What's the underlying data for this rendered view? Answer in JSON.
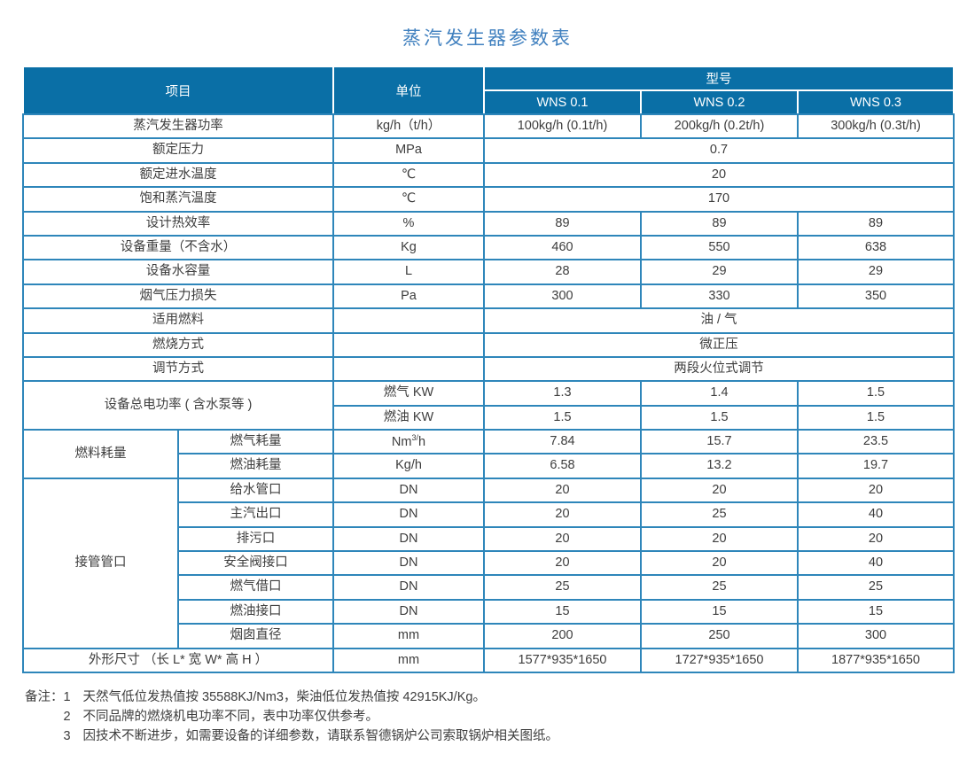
{
  "title": "蒸汽发生器参数表",
  "colors": {
    "header_bg": "#0a6fa6",
    "table_border": "#2e86ba",
    "title_text": "#4080bf",
    "body_text": "#3d3d3d"
  },
  "header": {
    "item": "项目",
    "unit": "单位",
    "model": "型号",
    "models": [
      "WNS 0.1",
      "WNS 0.2",
      "WNS 0.3"
    ]
  },
  "rows": [
    {
      "item": "蒸汽发生器功率",
      "unit": "kg/h（t/h）",
      "values": [
        "100kg/h  (0.1t/h)",
        "200kg/h  (0.2t/h)",
        "300kg/h  (0.3t/h)"
      ]
    },
    {
      "item": "额定压力",
      "unit": "MPa",
      "merged": "0.7"
    },
    {
      "item": "额定进水温度",
      "unit": "℃",
      "merged": "20"
    },
    {
      "item": "饱和蒸汽温度",
      "unit": "℃",
      "merged": "170"
    },
    {
      "item": "设计热效率",
      "unit": "%",
      "values": [
        "89",
        "89",
        "89"
      ]
    },
    {
      "item": "设备重量（不含水）",
      "unit": "Kg",
      "values": [
        "460",
        "550",
        "638"
      ]
    },
    {
      "item": "设备水容量",
      "unit": "L",
      "values": [
        "28",
        "29",
        "29"
      ]
    },
    {
      "item": "烟气压力损失",
      "unit": "Pa",
      "values": [
        "300",
        "330",
        "350"
      ]
    },
    {
      "item": "适用燃料",
      "unit": "",
      "merged": "油 / 气"
    },
    {
      "item": "燃烧方式",
      "unit": "",
      "merged": "微正压"
    },
    {
      "item": "调节方式",
      "unit": "",
      "merged": "两段火位式调节"
    },
    {
      "item": "设备总电功率 ( 含水泵等 )",
      "item_rows": 2,
      "unit": "燃气 KW",
      "values": [
        "1.3",
        "1.4",
        "1.5"
      ]
    },
    {
      "unit": "燃油 KW",
      "values": [
        "1.5",
        "1.5",
        "1.5"
      ]
    },
    {
      "group": "燃料耗量",
      "group_rows": 2,
      "sub": "燃气耗量",
      "unit_parts": [
        "Nm",
        "3/",
        "h"
      ],
      "values": [
        "7.84",
        "15.7",
        "23.5"
      ]
    },
    {
      "sub": "燃油耗量",
      "unit": "Kg/h",
      "values": [
        "6.58",
        "13.2",
        "19.7"
      ]
    },
    {
      "group": "接管管口",
      "group_rows": 7,
      "sub": "给水管口",
      "unit": "DN",
      "values": [
        "20",
        "20",
        "20"
      ]
    },
    {
      "sub": "主汽出口",
      "unit": "DN",
      "values": [
        "20",
        "25",
        "40"
      ]
    },
    {
      "sub": "排污口",
      "unit": "DN",
      "values": [
        "20",
        "20",
        "20"
      ]
    },
    {
      "sub": "安全阀接口",
      "unit": "DN",
      "values": [
        "20",
        "20",
        "40"
      ]
    },
    {
      "sub": "燃气借口",
      "unit": "DN",
      "values": [
        "25",
        "25",
        "25"
      ]
    },
    {
      "sub": "燃油接口",
      "unit": "DN",
      "values": [
        "15",
        "15",
        "15"
      ]
    },
    {
      "sub": "烟囱直径",
      "unit": "mm",
      "values": [
        "200",
        "250",
        "300"
      ]
    },
    {
      "item": "外形尺寸 （长 L* 宽 W* 高 H ）",
      "unit": "mm",
      "values": [
        "1577*935*1650",
        "1727*935*1650",
        "1877*935*1650"
      ]
    }
  ],
  "notes": {
    "label": "备注：",
    "items": [
      {
        "num": "1",
        "text": "天然气低位发热值按 35588KJ/Nm3，柴油低位发热值按 42915KJ/Kg。"
      },
      {
        "num": "2",
        "text": "不同品牌的燃烧机电功率不同，表中功率仅供参考。"
      },
      {
        "num": "3",
        "text": "因技术不断进步，如需要设备的详细参数，请联系智德锅炉公司索取锅炉相关图纸。"
      }
    ]
  }
}
